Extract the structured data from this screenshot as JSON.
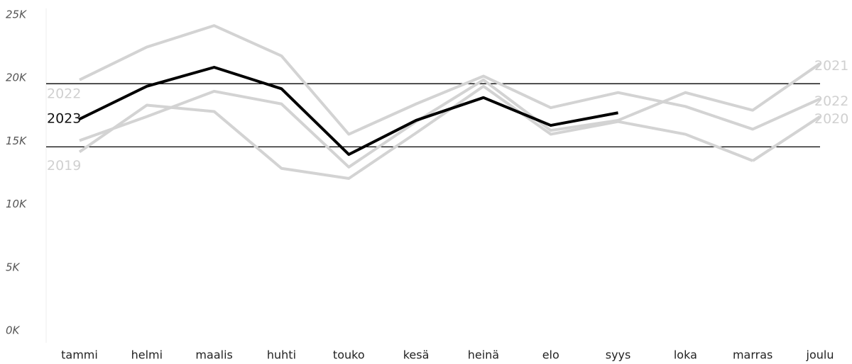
{
  "chart_data": {
    "type": "line",
    "categories": [
      "tammi",
      "helmi",
      "maalis",
      "huhti",
      "touko",
      "kesä",
      "heinä",
      "elo",
      "syys",
      "loka",
      "marras",
      "joulu"
    ],
    "ylim": [
      0,
      25000
    ],
    "yticks": [
      {
        "value": 0,
        "label": "0K"
      },
      {
        "value": 5000,
        "label": "5K"
      },
      {
        "value": 10000,
        "label": "10K"
      },
      {
        "value": 15000,
        "label": "15K"
      },
      {
        "value": 20000,
        "label": "20K"
      },
      {
        "value": 25000,
        "label": "25K"
      }
    ],
    "reference_lines": [
      15000,
      20000
    ],
    "series": [
      {
        "name": "2022",
        "color": "#d3d3d3",
        "label_at": [
          "start",
          "end"
        ],
        "values": [
          20300,
          22900,
          24600,
          22200,
          16000,
          18400,
          20600,
          18100,
          19300,
          18200,
          16400,
          18800
        ]
      },
      {
        "name": "2021",
        "color": "#d3d3d3",
        "label_at": [
          "end"
        ],
        "values": [
          15500,
          17400,
          19400,
          18400,
          13400,
          17000,
          20300,
          16300,
          17100,
          19300,
          17900,
          21600
        ]
      },
      {
        "name": "2019",
        "color": "#d3d3d3",
        "label_at": [
          "start"
        ],
        "values": [
          14600,
          18300,
          17800,
          13300,
          12500,
          16100,
          19800,
          16000,
          17000,
          16000,
          13900,
          null
        ]
      },
      {
        "name": "2020",
        "color": "#d3d3d3",
        "label_at": [
          "end"
        ],
        "values": [
          null,
          null,
          null,
          null,
          null,
          null,
          null,
          null,
          null,
          null,
          13900,
          17400
        ]
      },
      {
        "name": "2023",
        "color": "#000000",
        "label_at": [
          "start"
        ],
        "values": [
          17200,
          19800,
          21300,
          19600,
          14400,
          17100,
          18900,
          16700,
          17700,
          null,
          null,
          null
        ]
      }
    ]
  }
}
